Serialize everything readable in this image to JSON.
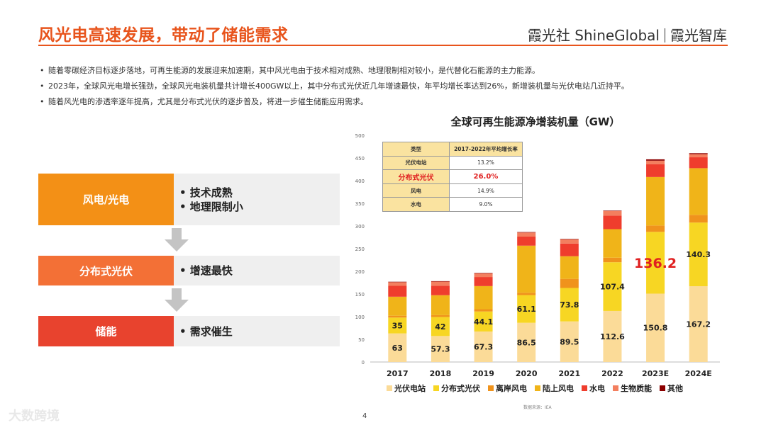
{
  "header": {
    "title": "风光电高速发展，带动了储能需求",
    "brand": "霞光社 ShineGlobal",
    "brand_sub": "霞光智库"
  },
  "bullets": [
    "随着零碳经济目标逐步落地，可再生能源的发展迎来加速期，其中风光电由于技术相对成熟、地理限制相对较小，是代替化石能源的主力能源。",
    "2023年，全球风光电增长强劲，全球风光电装机量共计增长400GW以上，其中分布式光伏近几年增速最快，年平均增长率达到26%，新增装机量与光伏电站几近持平。",
    "随着风光电的渗透率逐年提高，尤其是分布式光伏的逐步普及，将进一步催生储能应用需求。"
  ],
  "flow": [
    {
      "label": "风电/光电",
      "color": "#f39016",
      "points": [
        "• 技术成熟",
        "• 地理限制小"
      ]
    },
    {
      "label": "分布式光伏",
      "color": "#f37036",
      "points": [
        "• 增速最快"
      ]
    },
    {
      "label": "储能",
      "color": "#e8432e",
      "points": [
        "• 需求催生"
      ]
    }
  ],
  "growth_table": {
    "headers": [
      "类型",
      "2017-2022年平均增长率"
    ],
    "rows": [
      {
        "type": "光伏电站",
        "rate": "13.2%",
        "highlight": false
      },
      {
        "type": "分布式光伏",
        "rate": "26.0%",
        "highlight": true
      },
      {
        "type": "风电",
        "rate": "14.9%",
        "highlight": false
      },
      {
        "type": "水电",
        "rate": "9.0%",
        "highlight": false
      }
    ]
  },
  "chart_data": {
    "type": "bar",
    "stacked": true,
    "title": "全球可再生能源净增装机量（GW）",
    "categories": [
      "2017",
      "2018",
      "2019",
      "2020",
      "2021",
      "2022",
      "2023E",
      "2024E"
    ],
    "ylim": [
      0,
      500
    ],
    "yticks": [
      0,
      50,
      100,
      150,
      200,
      250,
      300,
      350,
      400,
      450,
      500
    ],
    "series": [
      {
        "name": "光伏电站",
        "color": "#fbdb98",
        "values": [
          63,
          57.3,
          67.3,
          86.5,
          89.5,
          112.6,
          150.8,
          167.2
        ],
        "labels": [
          "63",
          "57.3",
          "67.3",
          "86.5",
          "89.5",
          "112.6",
          "150.8",
          "167.2"
        ]
      },
      {
        "name": "分布式光伏",
        "color": "#f7d623",
        "values": [
          35,
          42,
          44.1,
          61.1,
          73.8,
          107.4,
          136.2,
          140.3
        ],
        "labels": [
          "35",
          "42",
          "44.1",
          "61.1",
          "73.8",
          "107.4",
          "136.2",
          "140.3"
        ]
      },
      {
        "name": "离岸风电",
        "color": "#f0931c",
        "values": [
          4,
          4,
          5,
          5,
          20,
          10,
          14,
          17
        ]
      },
      {
        "name": "陆上风电",
        "color": "#f0b419",
        "values": [
          42,
          44,
          51,
          104,
          50,
          63,
          107,
          103
        ]
      },
      {
        "name": "水电",
        "color": "#ef3d2d",
        "values": [
          24,
          21,
          20,
          20,
          28,
          30,
          28,
          24
        ]
      },
      {
        "name": "生物质能",
        "color": "#f37f5f",
        "values": [
          8,
          9,
          8,
          9,
          9,
          10,
          8,
          7
        ]
      },
      {
        "name": "其他",
        "color": "#8b0000",
        "values": [
          1,
          1,
          1,
          1,
          1,
          1,
          3,
          2
        ]
      }
    ],
    "highlight_label": "136.2",
    "highlight_color": "#e02020",
    "source": "数据来源：IEA"
  },
  "footer": {
    "page": "4",
    "watermark": "大数跨境"
  }
}
